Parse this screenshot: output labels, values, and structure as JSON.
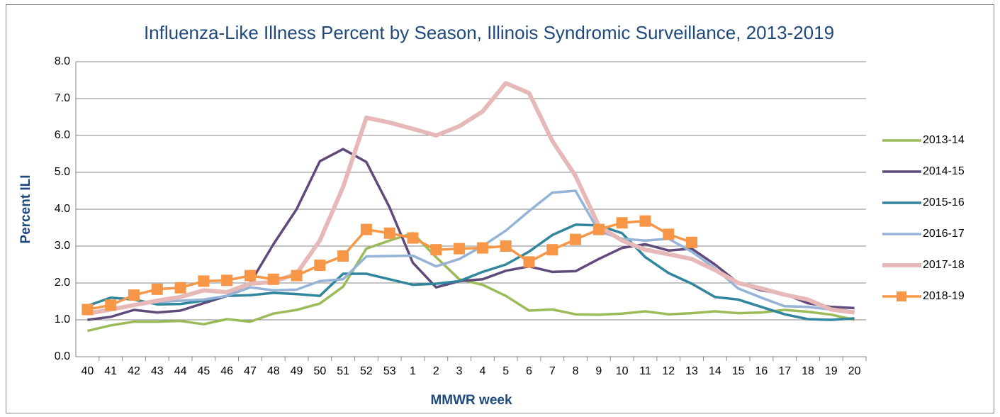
{
  "chart_data": {
    "type": "line",
    "title": "Influenza-Like Illness Percent by Season, Illinois Syndromic Surveillance, 2013-2019",
    "x_label": "MMWR week",
    "y_label": "Percent ILI",
    "categories": [
      "40",
      "41",
      "42",
      "43",
      "44",
      "45",
      "46",
      "47",
      "48",
      "49",
      "50",
      "51",
      "52",
      "53",
      "1",
      "2",
      "3",
      "4",
      "5",
      "6",
      "7",
      "8",
      "9",
      "10",
      "11",
      "12",
      "13",
      "14",
      "15",
      "16",
      "17",
      "18",
      "19",
      "20"
    ],
    "ylim": [
      0,
      8
    ],
    "yticks": [
      {
        "value": 0,
        "label": "0.0"
      },
      {
        "value": 1,
        "label": "1.0"
      },
      {
        "value": 2,
        "label": "2.0"
      },
      {
        "value": 3,
        "label": "3.0"
      },
      {
        "value": 4,
        "label": "4.0"
      },
      {
        "value": 5,
        "label": "5.0"
      },
      {
        "value": 6,
        "label": "6.0"
      },
      {
        "value": 7,
        "label": "7.0"
      },
      {
        "value": 8,
        "label": "8.0"
      }
    ],
    "grid": true,
    "legend": "right",
    "series": [
      {
        "name": "2013-14",
        "color": "#9bbb59",
        "values": [
          0.7,
          0.85,
          0.95,
          0.95,
          0.97,
          0.88,
          1.02,
          0.95,
          1.17,
          1.27,
          1.44,
          1.9,
          2.93,
          3.15,
          3.35,
          2.7,
          2.1,
          1.95,
          1.65,
          1.25,
          1.28,
          1.15,
          1.14,
          1.17,
          1.23,
          1.15,
          1.18,
          1.23,
          1.18,
          1.2,
          1.27,
          1.22,
          1.14,
          1.0
        ]
      },
      {
        "name": "2014-15",
        "color": "#604a7b",
        "values": [
          1.0,
          1.08,
          1.27,
          1.2,
          1.25,
          1.45,
          1.65,
          2.0,
          3.05,
          4.0,
          5.3,
          5.63,
          5.28,
          4.05,
          2.55,
          1.88,
          2.05,
          2.1,
          2.33,
          2.45,
          2.3,
          2.32,
          2.65,
          2.95,
          3.05,
          2.88,
          2.93,
          2.5,
          2.0,
          1.8,
          1.7,
          1.45,
          1.35,
          1.32
        ]
      },
      {
        "name": "2015-16",
        "color": "#31859c",
        "values": [
          1.38,
          1.6,
          1.55,
          1.42,
          1.43,
          1.52,
          1.65,
          1.67,
          1.73,
          1.7,
          1.65,
          2.25,
          2.25,
          2.1,
          1.95,
          1.98,
          2.05,
          2.3,
          2.5,
          2.85,
          3.3,
          3.58,
          3.56,
          3.35,
          2.7,
          2.27,
          1.98,
          1.62,
          1.55,
          1.35,
          1.15,
          1.02,
          1.0,
          1.04
        ]
      },
      {
        "name": "2016-17",
        "color": "#95b3d7",
        "values": [
          1.2,
          1.3,
          1.4,
          1.48,
          1.52,
          1.55,
          1.65,
          1.88,
          1.8,
          1.82,
          2.05,
          2.1,
          2.72,
          2.73,
          2.74,
          2.45,
          2.65,
          3.0,
          3.42,
          3.95,
          4.45,
          4.5,
          3.4,
          3.2,
          3.15,
          3.2,
          2.85,
          2.4,
          1.85,
          1.6,
          1.37,
          1.35,
          1.28,
          1.2
        ]
      },
      {
        "name": "2017-18",
        "color": "#e6b9b8",
        "width": 6,
        "values": [
          1.17,
          1.28,
          1.4,
          1.52,
          1.62,
          1.8,
          1.75,
          1.98,
          2.03,
          2.25,
          3.15,
          4.6,
          6.48,
          6.35,
          6.18,
          6.0,
          6.25,
          6.65,
          7.42,
          7.15,
          5.85,
          4.9,
          3.55,
          3.15,
          2.9,
          2.78,
          2.65,
          2.35,
          2.0,
          1.85,
          1.68,
          1.55,
          1.28,
          1.2
        ]
      },
      {
        "name": "2018-19",
        "color": "#f79646",
        "marker": "square",
        "values": [
          1.28,
          1.4,
          1.67,
          1.83,
          1.87,
          2.05,
          2.07,
          2.2,
          2.1,
          2.2,
          2.48,
          2.73,
          3.45,
          3.35,
          3.22,
          2.9,
          2.93,
          2.95,
          3.0,
          2.57,
          2.9,
          3.18,
          3.45,
          3.63,
          3.68,
          3.32,
          3.1,
          null,
          null,
          null,
          null,
          null,
          null,
          null
        ]
      }
    ]
  }
}
